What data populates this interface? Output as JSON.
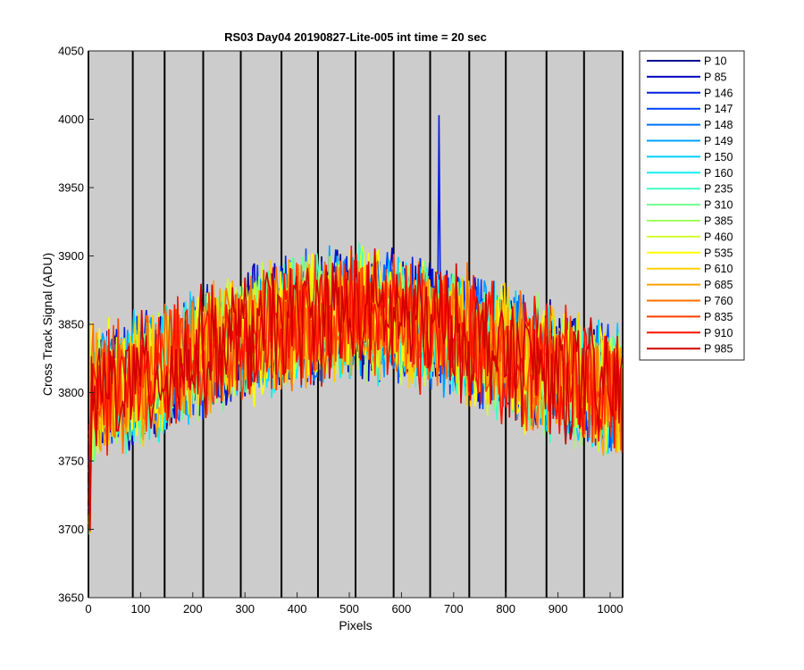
{
  "chart_data": {
    "type": "line",
    "title": "RS03 Day04 20190827-Lite-005 int time = 20 sec",
    "xlabel": "Pixels",
    "ylabel": "Cross Track Signal (ADU)",
    "xlim": [
      0,
      1024
    ],
    "ylim": [
      3650,
      4050
    ],
    "x_ticks": [
      0,
      100,
      200,
      300,
      400,
      500,
      600,
      700,
      800,
      900,
      1000
    ],
    "y_ticks": [
      3650,
      3700,
      3750,
      3800,
      3850,
      3900,
      3950,
      4000,
      4050
    ],
    "background_color": "#cccccc",
    "grid": false,
    "legend_position": "outside-right",
    "vertical_lines_x": [
      0,
      85,
      146,
      220,
      292,
      370,
      440,
      512,
      585,
      655,
      730,
      800,
      878,
      950,
      1024
    ],
    "profile_model": {
      "description": "noisy cross-track profile, same shape for every series",
      "center_x": 512,
      "base_level": 3800,
      "peak_level": 3858,
      "noise_amplitude_adu": 55,
      "notable_spike": {
        "series": "P 146",
        "x": 672,
        "y": 4003
      }
    },
    "series": [
      {
        "name": "P 10",
        "color": "#00008f"
      },
      {
        "name": "P 85",
        "color": "#0000bf"
      },
      {
        "name": "P 146",
        "color": "#0020e0"
      },
      {
        "name": "P 147",
        "color": "#0040ff"
      },
      {
        "name": "P 148",
        "color": "#0070ff"
      },
      {
        "name": "P 149",
        "color": "#00a0ff"
      },
      {
        "name": "P 150",
        "color": "#00cfff"
      },
      {
        "name": "P 160",
        "color": "#10efef"
      },
      {
        "name": "P 235",
        "color": "#40ffc0"
      },
      {
        "name": "P 310",
        "color": "#70ff90"
      },
      {
        "name": "P 385",
        "color": "#a0ff60"
      },
      {
        "name": "P 460",
        "color": "#d0ff30"
      },
      {
        "name": "P 535",
        "color": "#ffff00"
      },
      {
        "name": "P 610",
        "color": "#ffcf00"
      },
      {
        "name": "P 685",
        "color": "#ffa000"
      },
      {
        "name": "P 760",
        "color": "#ff7000"
      },
      {
        "name": "P 835",
        "color": "#ff4000"
      },
      {
        "name": "P 910",
        "color": "#ff1000"
      },
      {
        "name": "P 985",
        "color": "#d00000"
      }
    ]
  }
}
